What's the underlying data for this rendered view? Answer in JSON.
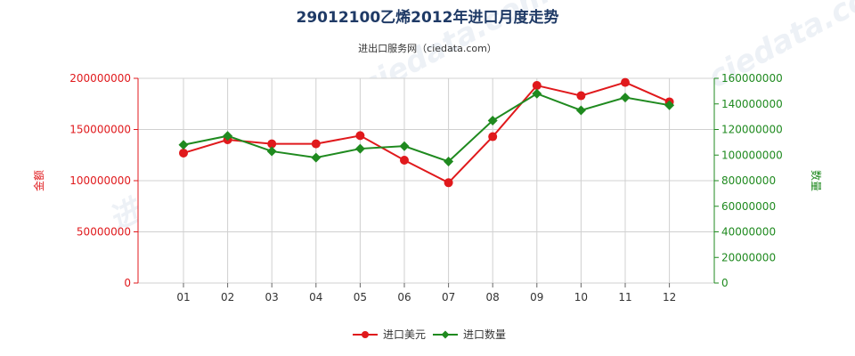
{
  "chart_data": {
    "type": "line",
    "title": "29012100乙烯2012年进口月度走势",
    "subtitle": "进出口服务网（ciedata.com）",
    "watermark": "进出口服务网 www.ciedata.com",
    "categories": [
      "01",
      "02",
      "03",
      "04",
      "05",
      "06",
      "07",
      "08",
      "09",
      "10",
      "11",
      "12"
    ],
    "y_left": {
      "label": "金额",
      "range": [
        0,
        200000000
      ],
      "ticks": [
        "0",
        "50000000",
        "100000000",
        "150000000",
        "200000000"
      ],
      "color": "#e0191c"
    },
    "y_right": {
      "label": "数量",
      "range": [
        0,
        160000000
      ],
      "ticks": [
        "0",
        "20000000",
        "40000000",
        "60000000",
        "80000000",
        "100000000",
        "120000000",
        "140000000",
        "160000000"
      ],
      "color": "#1f8a1f"
    },
    "grid": true,
    "legend_position": "bottom",
    "series": [
      {
        "name": "进口美元",
        "axis": "left",
        "color": "#e0191c",
        "marker": "circle",
        "values": [
          127000000,
          140000000,
          136000000,
          136000000,
          144000000,
          120000000,
          98000000,
          143000000,
          193000000,
          183000000,
          196000000,
          177000000
        ]
      },
      {
        "name": "进口数量",
        "axis": "right",
        "color": "#1f8a1f",
        "marker": "diamond",
        "values": [
          108000000,
          115000000,
          103000000,
          98000000,
          105000000,
          107000000,
          95000000,
          127000000,
          148000000,
          135000000,
          145000000,
          139000000
        ]
      }
    ]
  }
}
